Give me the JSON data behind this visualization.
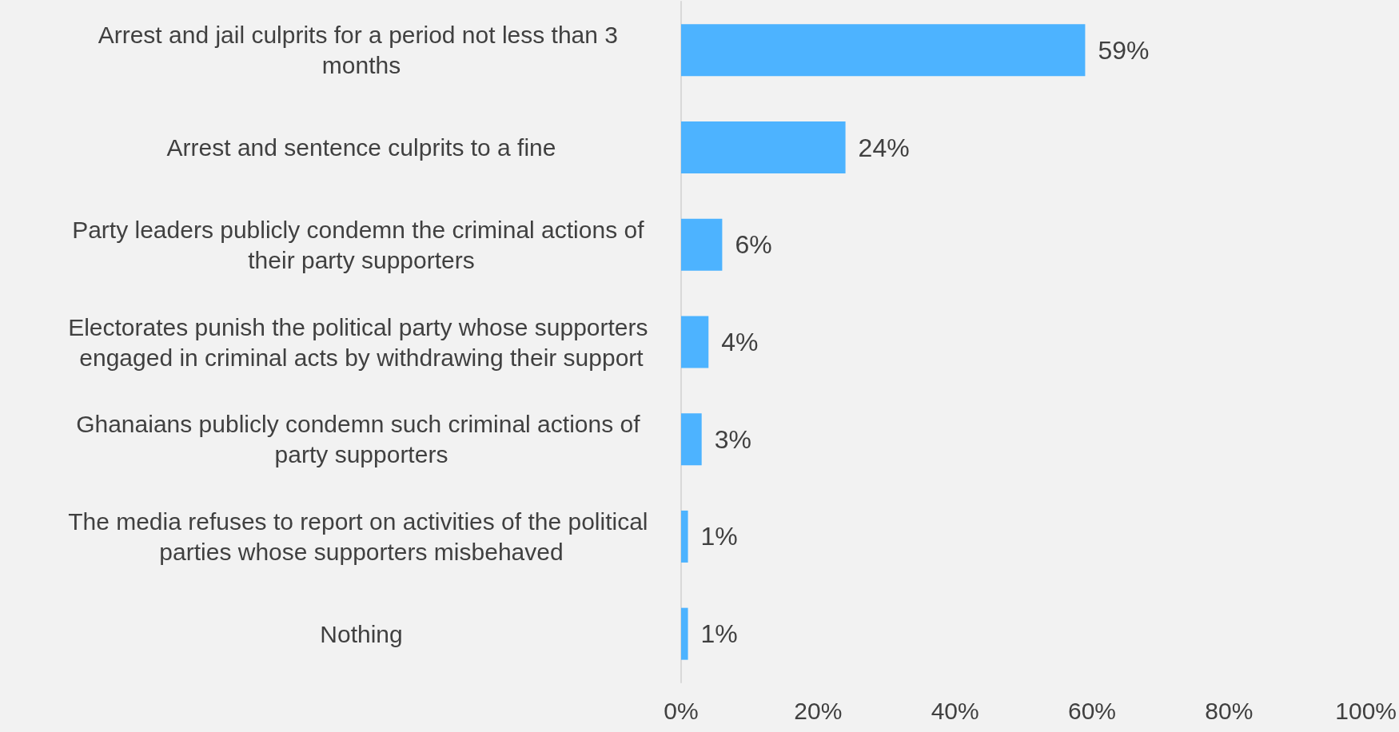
{
  "chart_data": {
    "type": "bar",
    "orientation": "horizontal",
    "categories": [
      "Arrest and jail culprits for a period not less than 3 months",
      "Arrest and sentence culprits to a fine",
      "Party leaders publicly condemn the criminal actions of their party supporters",
      "Electorates punish the political party whose supporters engaged in criminal acts by withdrawing their support",
      "Ghanaians publicly condemn such criminal actions of party supporters",
      "The media refuses to report on activities of the political parties whose supporters misbehaved",
      "Nothing"
    ],
    "values": [
      59,
      24,
      6,
      4,
      3,
      1,
      1
    ],
    "value_labels": [
      "59%",
      "24%",
      "6%",
      "4%",
      "3%",
      "1%",
      "1%"
    ],
    "color": "#4db3ff",
    "xlim": [
      0,
      100
    ],
    "xticks": [
      {
        "value": 0,
        "label": "0%"
      },
      {
        "value": 20,
        "label": "20%"
      },
      {
        "value": 40,
        "label": "40%"
      },
      {
        "value": 60,
        "label": "60%"
      },
      {
        "value": 80,
        "label": "80%"
      },
      {
        "value": 100,
        "label": "100%"
      }
    ],
    "grid": false
  }
}
